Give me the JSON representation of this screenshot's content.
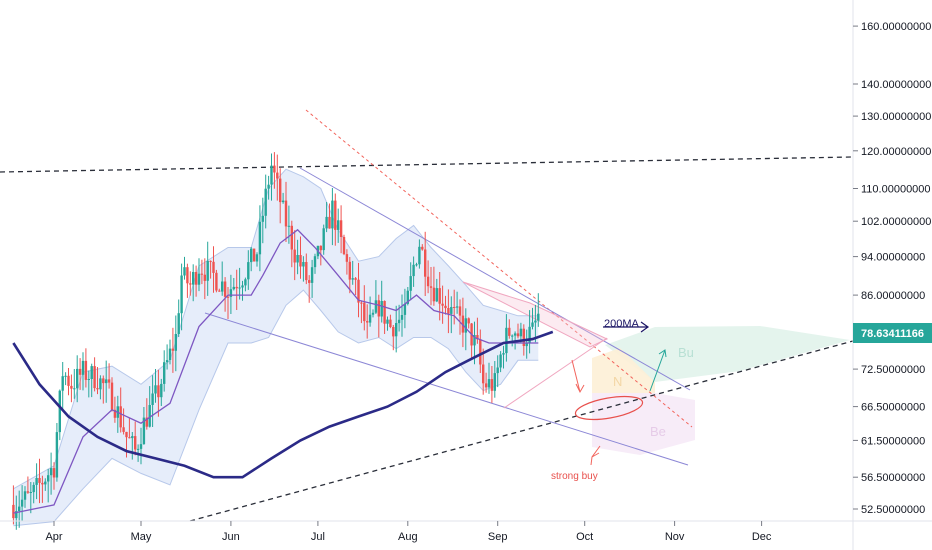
{
  "chart_data": {
    "type": "candlestick",
    "scale": "log",
    "grid": false,
    "last_price": "78.63411166",
    "y_ticks": [
      {
        "label": "160.00000000",
        "value": 160
      },
      {
        "label": "140.00000000",
        "value": 140
      },
      {
        "label": "130.00000000",
        "value": 130
      },
      {
        "label": "120.00000000",
        "value": 120
      },
      {
        "label": "110.00000000",
        "value": 110
      },
      {
        "label": "102.00000000",
        "value": 102
      },
      {
        "label": "94.00000000",
        "value": 94
      },
      {
        "label": "86.00000000",
        "value": 86
      },
      {
        "label": "72.50000000",
        "value": 72.5
      },
      {
        "label": "66.50000000",
        "value": 66.5
      },
      {
        "label": "61.50000000",
        "value": 61.5
      },
      {
        "label": "56.50000000",
        "value": 56.5
      },
      {
        "label": "52.50000000",
        "value": 52.5
      }
    ],
    "x_ticks": [
      {
        "label": "Apr",
        "day": 0
      },
      {
        "label": "May",
        "day": 30
      },
      {
        "label": "Jun",
        "day": 61
      },
      {
        "label": "Jul",
        "day": 91
      },
      {
        "label": "Aug",
        "day": 122
      },
      {
        "label": "Sep",
        "day": 153
      },
      {
        "label": "Oct",
        "day": 183
      },
      {
        "label": "Nov",
        "day": 214
      },
      {
        "label": "Dec",
        "day": 244
      }
    ],
    "annotations": {
      "ma_label": "200MA",
      "strong_buy": "strong buy",
      "zone_bull": "Bu",
      "zone_neutral": "N",
      "zone_bear": "Be"
    },
    "price_path": [
      [
        -14,
        53
      ],
      [
        -8,
        54
      ],
      [
        -4,
        56
      ],
      [
        0,
        58
      ],
      [
        3,
        72
      ],
      [
        6,
        70
      ],
      [
        10,
        72
      ],
      [
        15,
        71
      ],
      [
        20,
        68
      ],
      [
        25,
        62
      ],
      [
        28,
        60
      ],
      [
        31,
        64
      ],
      [
        36,
        69
      ],
      [
        38,
        72
      ],
      [
        42,
        78
      ],
      [
        44,
        90
      ],
      [
        47,
        88
      ],
      [
        50,
        92
      ],
      [
        55,
        90
      ],
      [
        60,
        87
      ],
      [
        65,
        90
      ],
      [
        70,
        95
      ],
      [
        73,
        108
      ],
      [
        75,
        116
      ],
      [
        79,
        104
      ],
      [
        83,
        95
      ],
      [
        88,
        88
      ],
      [
        93,
        98
      ],
      [
        96,
        105
      ],
      [
        100,
        94
      ],
      [
        104,
        87
      ],
      [
        108,
        79
      ],
      [
        112,
        84
      ],
      [
        116,
        80
      ],
      [
        121,
        82
      ],
      [
        124,
        92
      ],
      [
        126,
        97
      ],
      [
        130,
        88
      ],
      [
        133,
        86
      ],
      [
        138,
        82
      ],
      [
        142,
        80
      ],
      [
        146,
        76
      ],
      [
        148,
        70
      ],
      [
        152,
        70
      ],
      [
        155,
        77
      ],
      [
        158,
        80
      ],
      [
        161,
        78
      ],
      [
        165,
        79
      ],
      [
        167,
        82
      ]
    ],
    "ma_fast_path": [
      [
        -14,
        52
      ],
      [
        0,
        53
      ],
      [
        10,
        62
      ],
      [
        20,
        66
      ],
      [
        30,
        64
      ],
      [
        40,
        67
      ],
      [
        50,
        80
      ],
      [
        60,
        86
      ],
      [
        68,
        86
      ],
      [
        72,
        90
      ],
      [
        78,
        97
      ],
      [
        84,
        100
      ],
      [
        90,
        96
      ],
      [
        98,
        90
      ],
      [
        105,
        85
      ],
      [
        112,
        84
      ],
      [
        118,
        83
      ],
      [
        125,
        86
      ],
      [
        131,
        83
      ],
      [
        138,
        82
      ],
      [
        145,
        78
      ],
      [
        150,
        77
      ],
      [
        158,
        77
      ],
      [
        167,
        77
      ]
    ],
    "ma200_path": [
      [
        -14,
        77
      ],
      [
        -5,
        70
      ],
      [
        5,
        65
      ],
      [
        15,
        62
      ],
      [
        25,
        60
      ],
      [
        35,
        59
      ],
      [
        45,
        58
      ],
      [
        55,
        56.5
      ],
      [
        65,
        56.5
      ],
      [
        75,
        59
      ],
      [
        85,
        61.5
      ],
      [
        95,
        63.5
      ],
      [
        105,
        65
      ],
      [
        115,
        66.5
      ],
      [
        125,
        68.8
      ],
      [
        135,
        72
      ],
      [
        145,
        74.5
      ],
      [
        155,
        77
      ],
      [
        165,
        77.7
      ],
      [
        172,
        79
      ]
    ],
    "bb_upper_path": [
      [
        -14,
        55
      ],
      [
        0,
        58
      ],
      [
        10,
        72
      ],
      [
        20,
        73
      ],
      [
        30,
        70
      ],
      [
        40,
        74
      ],
      [
        50,
        92
      ],
      [
        60,
        96
      ],
      [
        68,
        96
      ],
      [
        74,
        110
      ],
      [
        80,
        115
      ],
      [
        86,
        113
      ],
      [
        92,
        110
      ],
      [
        98,
        100
      ],
      [
        105,
        93
      ],
      [
        112,
        94
      ],
      [
        118,
        98
      ],
      [
        124,
        101
      ],
      [
        130,
        96
      ],
      [
        136,
        92
      ],
      [
        142,
        88
      ],
      [
        148,
        84
      ],
      [
        154,
        83
      ],
      [
        160,
        82
      ],
      [
        167,
        82
      ]
    ],
    "bb_lower_path": [
      [
        -14,
        50.5
      ],
      [
        0,
        51
      ],
      [
        10,
        55
      ],
      [
        20,
        59
      ],
      [
        30,
        57
      ],
      [
        40,
        55.5
      ],
      [
        50,
        66
      ],
      [
        60,
        77
      ],
      [
        68,
        77
      ],
      [
        74,
        78
      ],
      [
        80,
        84
      ],
      [
        86,
        87
      ],
      [
        92,
        83
      ],
      [
        98,
        79
      ],
      [
        105,
        77
      ],
      [
        112,
        78
      ],
      [
        118,
        76
      ],
      [
        124,
        78
      ],
      [
        130,
        78
      ],
      [
        136,
        76
      ],
      [
        142,
        72
      ],
      [
        148,
        69
      ],
      [
        154,
        70
      ],
      [
        160,
        74
      ],
      [
        167,
        74
      ]
    ]
  }
}
